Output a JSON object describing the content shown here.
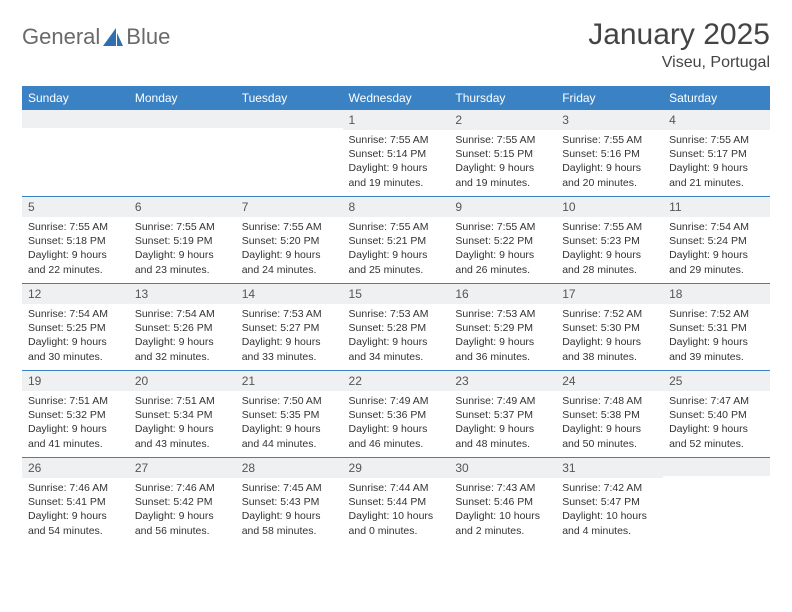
{
  "brand": {
    "part1": "General",
    "part2": "Blue",
    "color_text": "#6a6a6a",
    "color_accent": "#2f6fb0"
  },
  "title": "January 2025",
  "location": "Viseu, Portugal",
  "weekdays": [
    "Sunday",
    "Monday",
    "Tuesday",
    "Wednesday",
    "Thursday",
    "Friday",
    "Saturday"
  ],
  "colors": {
    "header_bg": "#3b82c4",
    "header_fg": "#ffffff",
    "daynum_bg": "#eef0f2",
    "rule": "#3b82c4"
  },
  "weeks": [
    [
      null,
      null,
      null,
      {
        "n": "1",
        "sunrise": "7:55 AM",
        "sunset": "5:14 PM",
        "day_h": 9,
        "day_m": 19
      },
      {
        "n": "2",
        "sunrise": "7:55 AM",
        "sunset": "5:15 PM",
        "day_h": 9,
        "day_m": 19
      },
      {
        "n": "3",
        "sunrise": "7:55 AM",
        "sunset": "5:16 PM",
        "day_h": 9,
        "day_m": 20
      },
      {
        "n": "4",
        "sunrise": "7:55 AM",
        "sunset": "5:17 PM",
        "day_h": 9,
        "day_m": 21
      }
    ],
    [
      {
        "n": "5",
        "sunrise": "7:55 AM",
        "sunset": "5:18 PM",
        "day_h": 9,
        "day_m": 22
      },
      {
        "n": "6",
        "sunrise": "7:55 AM",
        "sunset": "5:19 PM",
        "day_h": 9,
        "day_m": 23
      },
      {
        "n": "7",
        "sunrise": "7:55 AM",
        "sunset": "5:20 PM",
        "day_h": 9,
        "day_m": 24
      },
      {
        "n": "8",
        "sunrise": "7:55 AM",
        "sunset": "5:21 PM",
        "day_h": 9,
        "day_m": 25
      },
      {
        "n": "9",
        "sunrise": "7:55 AM",
        "sunset": "5:22 PM",
        "day_h": 9,
        "day_m": 26
      },
      {
        "n": "10",
        "sunrise": "7:55 AM",
        "sunset": "5:23 PM",
        "day_h": 9,
        "day_m": 28
      },
      {
        "n": "11",
        "sunrise": "7:54 AM",
        "sunset": "5:24 PM",
        "day_h": 9,
        "day_m": 29
      }
    ],
    [
      {
        "n": "12",
        "sunrise": "7:54 AM",
        "sunset": "5:25 PM",
        "day_h": 9,
        "day_m": 30
      },
      {
        "n": "13",
        "sunrise": "7:54 AM",
        "sunset": "5:26 PM",
        "day_h": 9,
        "day_m": 32
      },
      {
        "n": "14",
        "sunrise": "7:53 AM",
        "sunset": "5:27 PM",
        "day_h": 9,
        "day_m": 33
      },
      {
        "n": "15",
        "sunrise": "7:53 AM",
        "sunset": "5:28 PM",
        "day_h": 9,
        "day_m": 34
      },
      {
        "n": "16",
        "sunrise": "7:53 AM",
        "sunset": "5:29 PM",
        "day_h": 9,
        "day_m": 36
      },
      {
        "n": "17",
        "sunrise": "7:52 AM",
        "sunset": "5:30 PM",
        "day_h": 9,
        "day_m": 38
      },
      {
        "n": "18",
        "sunrise": "7:52 AM",
        "sunset": "5:31 PM",
        "day_h": 9,
        "day_m": 39
      }
    ],
    [
      {
        "n": "19",
        "sunrise": "7:51 AM",
        "sunset": "5:32 PM",
        "day_h": 9,
        "day_m": 41
      },
      {
        "n": "20",
        "sunrise": "7:51 AM",
        "sunset": "5:34 PM",
        "day_h": 9,
        "day_m": 43
      },
      {
        "n": "21",
        "sunrise": "7:50 AM",
        "sunset": "5:35 PM",
        "day_h": 9,
        "day_m": 44
      },
      {
        "n": "22",
        "sunrise": "7:49 AM",
        "sunset": "5:36 PM",
        "day_h": 9,
        "day_m": 46
      },
      {
        "n": "23",
        "sunrise": "7:49 AM",
        "sunset": "5:37 PM",
        "day_h": 9,
        "day_m": 48
      },
      {
        "n": "24",
        "sunrise": "7:48 AM",
        "sunset": "5:38 PM",
        "day_h": 9,
        "day_m": 50
      },
      {
        "n": "25",
        "sunrise": "7:47 AM",
        "sunset": "5:40 PM",
        "day_h": 9,
        "day_m": 52
      }
    ],
    [
      {
        "n": "26",
        "sunrise": "7:46 AM",
        "sunset": "5:41 PM",
        "day_h": 9,
        "day_m": 54
      },
      {
        "n": "27",
        "sunrise": "7:46 AM",
        "sunset": "5:42 PM",
        "day_h": 9,
        "day_m": 56
      },
      {
        "n": "28",
        "sunrise": "7:45 AM",
        "sunset": "5:43 PM",
        "day_h": 9,
        "day_m": 58
      },
      {
        "n": "29",
        "sunrise": "7:44 AM",
        "sunset": "5:44 PM",
        "day_h": 10,
        "day_m": 0
      },
      {
        "n": "30",
        "sunrise": "7:43 AM",
        "sunset": "5:46 PM",
        "day_h": 10,
        "day_m": 2
      },
      {
        "n": "31",
        "sunrise": "7:42 AM",
        "sunset": "5:47 PM",
        "day_h": 10,
        "day_m": 4
      },
      null
    ]
  ],
  "labels": {
    "sunrise": "Sunrise:",
    "sunset": "Sunset:",
    "daylight": "Daylight:"
  }
}
